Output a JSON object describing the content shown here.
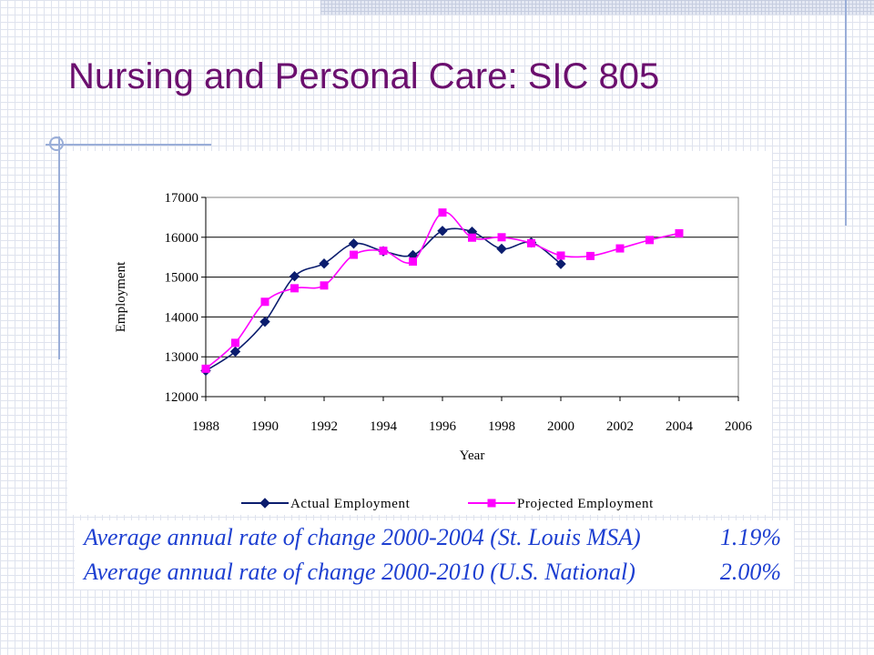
{
  "slide": {
    "title": "Nursing and Personal Care: SIC 805"
  },
  "colors": {
    "title": "#6b0f6e",
    "actual": "#0b1d6e",
    "projected": "#ff00ff",
    "stats_text": "#1d3fd1"
  },
  "chart_data": {
    "type": "line",
    "xlabel": "Year",
    "ylabel": "Employment",
    "xlim": [
      1988,
      2006
    ],
    "ylim": [
      12000,
      17000
    ],
    "xticks": [
      1988,
      1990,
      1992,
      1994,
      1996,
      1998,
      2000,
      2002,
      2004,
      2006
    ],
    "yticks": [
      12000,
      13000,
      14000,
      15000,
      16000,
      17000
    ],
    "grid": "horizontal",
    "legend_position": "bottom",
    "series": [
      {
        "name": "Actual Employment",
        "marker": "diamond",
        "color": "#0b1d6e",
        "x": [
          1988,
          1989,
          1990,
          1991,
          1992,
          1993,
          1994,
          1995,
          1996,
          1997,
          1998,
          1999,
          2000
        ],
        "y": [
          12650,
          13130,
          13880,
          15020,
          15340,
          15840,
          15650,
          15550,
          16160,
          16140,
          15710,
          15870,
          15330
        ]
      },
      {
        "name": "Projected Employment",
        "marker": "square",
        "color": "#ff00ff",
        "x": [
          1988,
          1989,
          1990,
          1991,
          1992,
          1993,
          1994,
          1995,
          1996,
          1997,
          1998,
          1999,
          2000,
          2001,
          2002,
          2003,
          2004
        ],
        "y": [
          12700,
          13350,
          14380,
          14720,
          14790,
          15560,
          15660,
          15390,
          16620,
          15990,
          16000,
          15850,
          15540,
          15530,
          15720,
          15930,
          16100
        ]
      }
    ]
  },
  "stats": {
    "row1": {
      "label": "Average annual rate of change 2000-2004 (St. Louis MSA)",
      "value": "1.19%"
    },
    "row2": {
      "label": "Average annual rate of change 2000-2010 (U.S. National)",
      "value": "2.00%"
    }
  }
}
